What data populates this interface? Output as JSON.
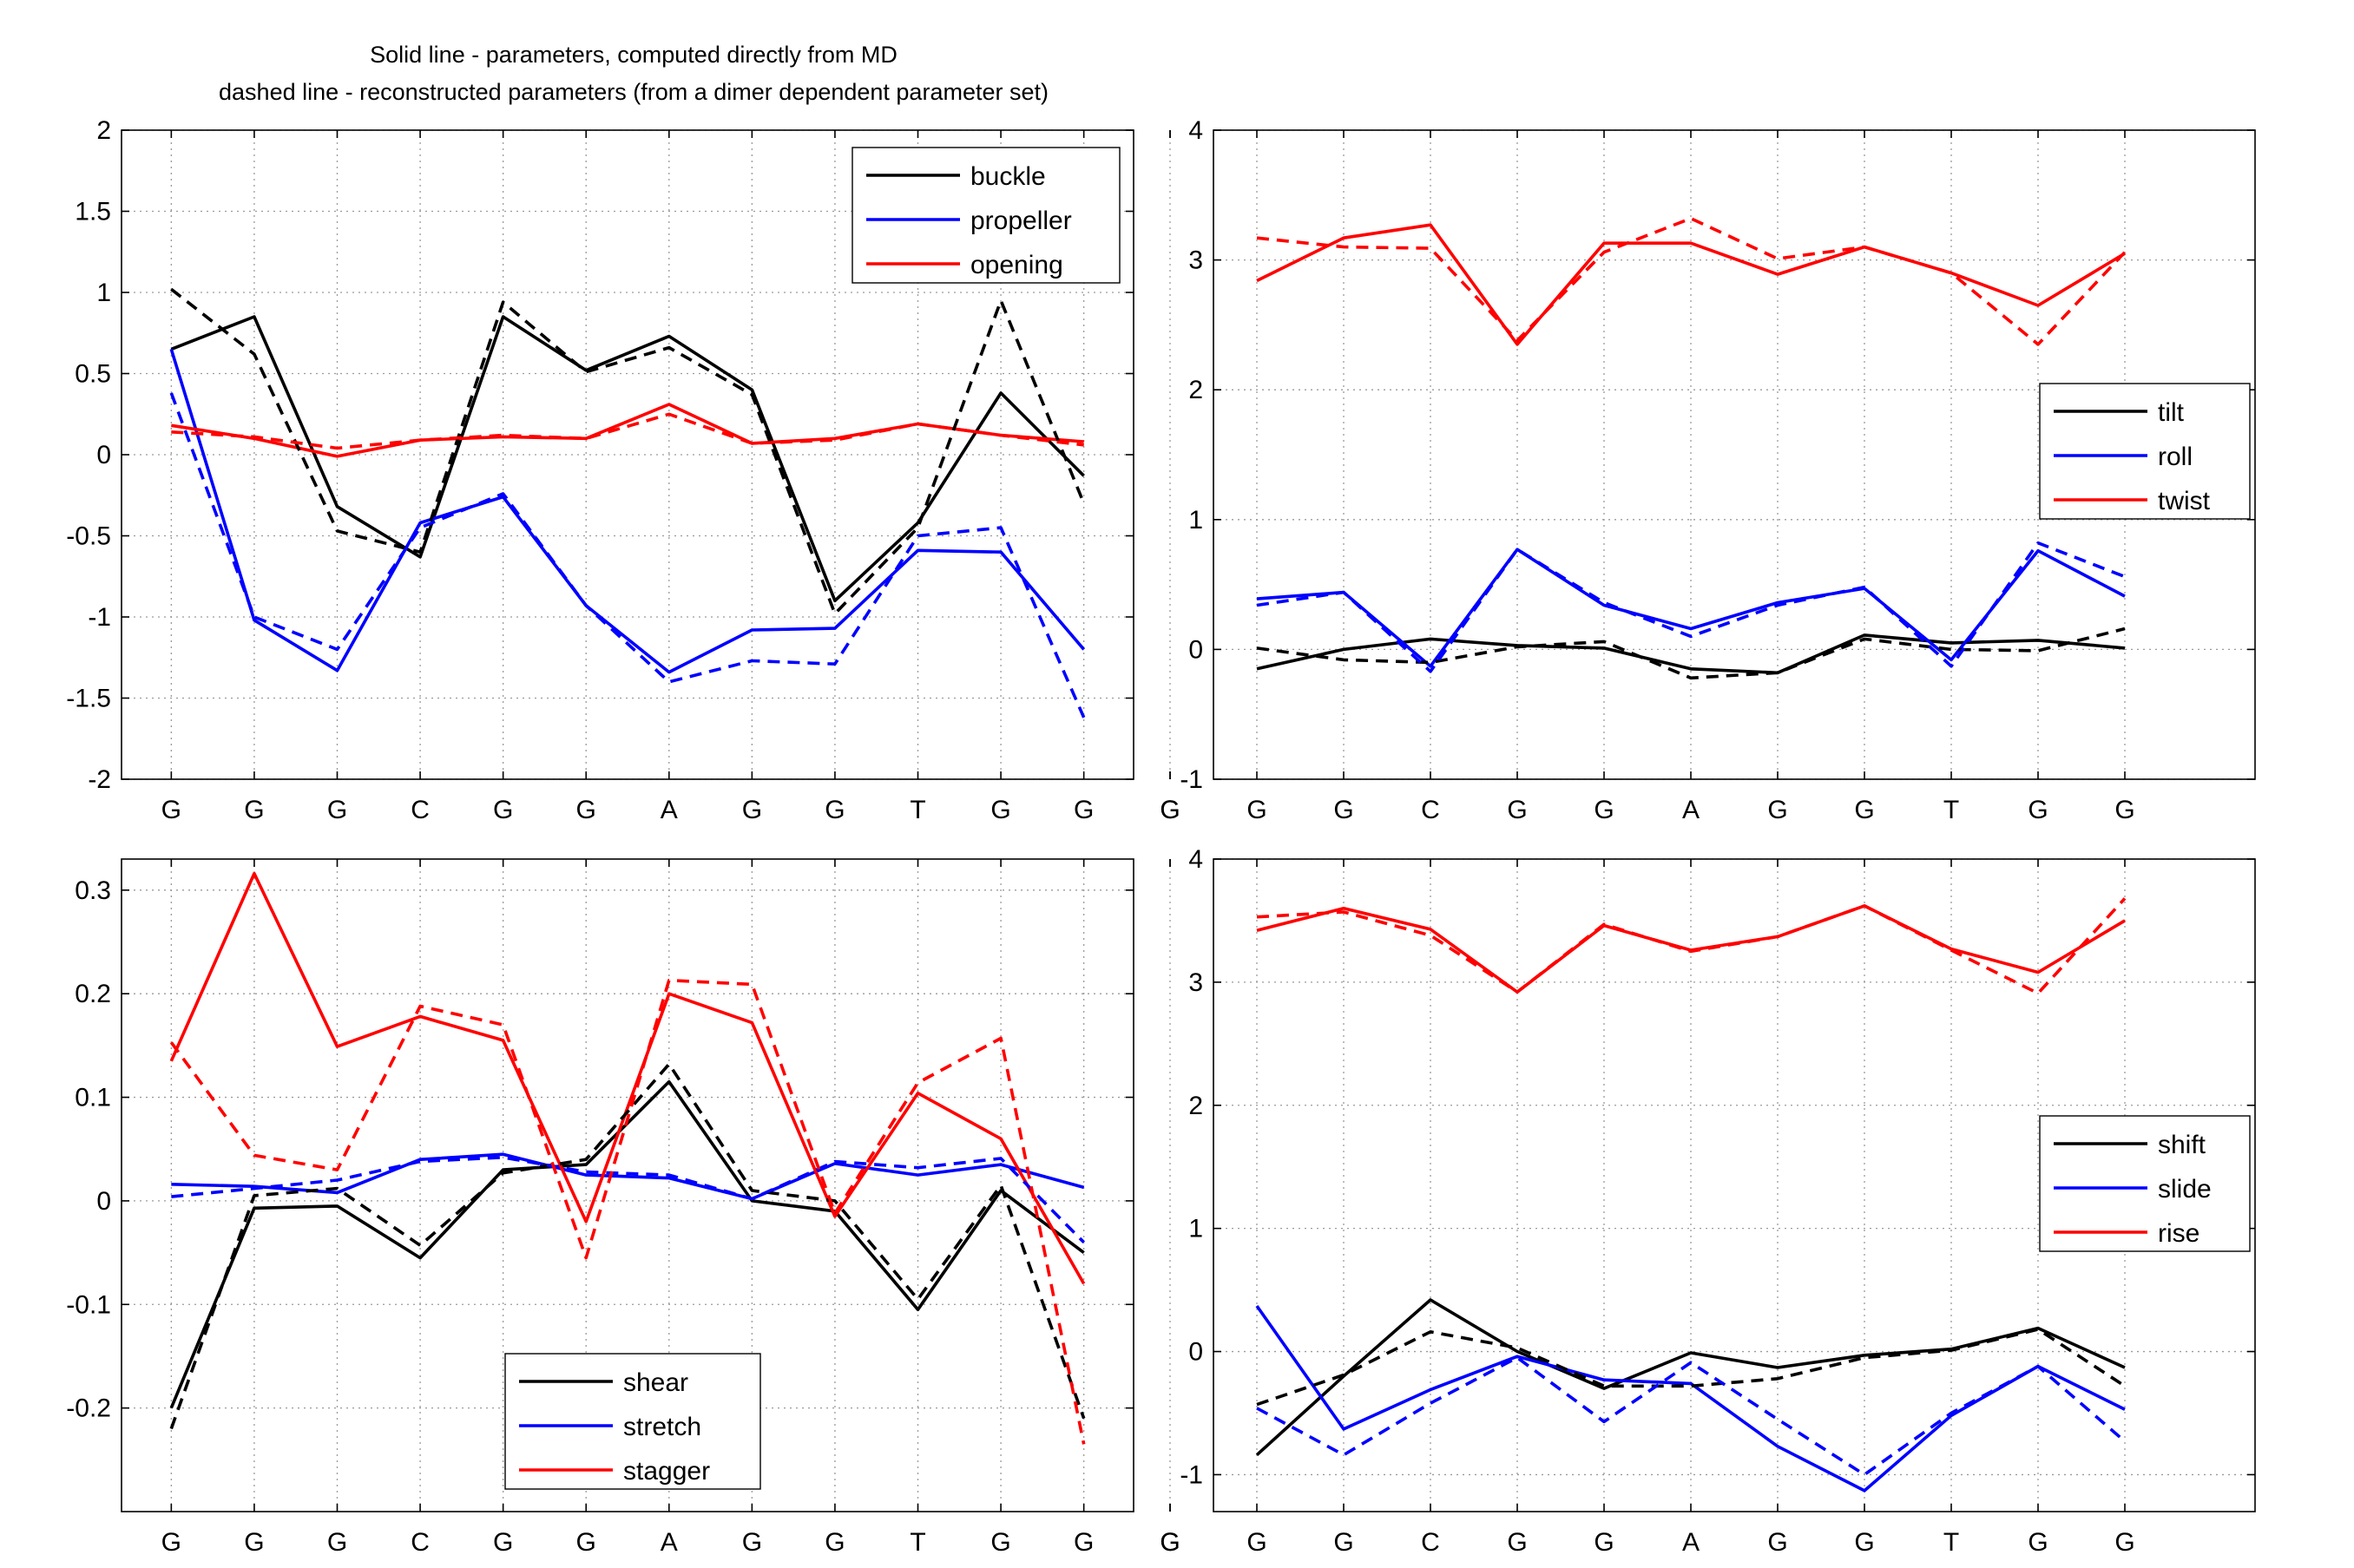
{
  "title_lines": [
    "Solid line - parameters, computed directly from MD",
    "dashed line - reconstructed parameters (from a dimer dependent parameter set)"
  ],
  "chart_data": [
    {
      "type": "line",
      "panel": "top-left",
      "categories": [
        "G",
        "G",
        "G",
        "C",
        "G",
        "G",
        "A",
        "G",
        "G",
        "T",
        "G",
        "G"
      ],
      "ylim": [
        -2,
        2
      ],
      "yticks": [
        -2,
        -1.5,
        -1,
        -0.5,
        0,
        0.5,
        1,
        1.5,
        2
      ],
      "ytick_labels": [
        "-2",
        "-1.5",
        "-1",
        "-0.5",
        "0",
        "0.5",
        "1",
        "1.5",
        "2"
      ],
      "grid": true,
      "legend_position": "top-right",
      "series": [
        {
          "name": "buckle",
          "color": "#000000",
          "style": "solid",
          "values": [
            0.65,
            0.85,
            -0.32,
            -0.63,
            0.85,
            0.52,
            0.73,
            0.4,
            -0.9,
            -0.42,
            0.38,
            -0.13
          ]
        },
        {
          "name": "propeller",
          "color": "#0000ff",
          "style": "solid",
          "values": [
            0.65,
            -1.02,
            -1.33,
            -0.42,
            -0.26,
            -0.93,
            -1.34,
            -1.08,
            -1.07,
            -0.59,
            -0.6,
            -1.2
          ]
        },
        {
          "name": "opening",
          "color": "#ff0000",
          "style": "solid",
          "values": [
            0.18,
            0.1,
            -0.01,
            0.09,
            0.11,
            0.1,
            0.31,
            0.07,
            0.1,
            0.19,
            0.12,
            0.08
          ]
        },
        {
          "color": "#000000",
          "style": "dashed",
          "values": [
            1.02,
            0.62,
            -0.47,
            -0.6,
            0.94,
            0.51,
            0.66,
            0.37,
            -0.98,
            -0.45,
            0.95,
            -0.3
          ]
        },
        {
          "color": "#0000ff",
          "style": "dashed",
          "values": [
            0.38,
            -1.0,
            -1.2,
            -0.45,
            -0.24,
            -0.93,
            -1.4,
            -1.27,
            -1.29,
            -0.5,
            -0.45,
            -1.62
          ]
        },
        {
          "color": "#ff0000",
          "style": "dashed",
          "values": [
            0.14,
            0.11,
            0.04,
            0.09,
            0.12,
            0.1,
            0.25,
            0.07,
            0.09,
            0.19,
            0.12,
            0.06
          ]
        }
      ]
    },
    {
      "type": "line",
      "panel": "top-right",
      "categories": [
        "G",
        "G",
        "G",
        "C",
        "G",
        "G",
        "A",
        "G",
        "G",
        "T",
        "G",
        "G"
      ],
      "ylim": [
        -1,
        4
      ],
      "yticks": [
        -1,
        0,
        1,
        2,
        3,
        4
      ],
      "ytick_labels": [
        "-1",
        "0",
        "1",
        "2",
        "3",
        "4"
      ],
      "grid": true,
      "legend_position": "middle-right",
      "series": [
        {
          "name": "tilt",
          "color": "#000000",
          "style": "solid",
          "values": [
            null,
            -0.15,
            0.0,
            0.08,
            0.03,
            0.01,
            -0.15,
            -0.18,
            0.11,
            0.05,
            0.07,
            0.01
          ]
        },
        {
          "name": "roll",
          "color": "#0000ff",
          "style": "solid",
          "values": [
            null,
            0.39,
            0.44,
            -0.13,
            0.77,
            0.34,
            0.16,
            0.36,
            0.47,
            -0.08,
            0.76,
            0.41
          ]
        },
        {
          "name": "twist",
          "color": "#ff0000",
          "style": "solid",
          "values": [
            null,
            2.84,
            3.17,
            3.27,
            2.35,
            3.13,
            3.13,
            2.89,
            3.1,
            2.9,
            2.65,
            3.05
          ]
        },
        {
          "color": "#000000",
          "style": "dashed",
          "values": [
            null,
            0.01,
            -0.08,
            -0.1,
            0.02,
            0.06,
            -0.22,
            -0.18,
            0.08,
            0.0,
            -0.01,
            0.16
          ]
        },
        {
          "color": "#0000ff",
          "style": "dashed",
          "values": [
            null,
            0.34,
            0.44,
            -0.17,
            0.77,
            0.36,
            0.1,
            0.34,
            0.48,
            -0.13,
            0.82,
            0.56
          ]
        },
        {
          "color": "#ff0000",
          "style": "dashed",
          "values": [
            null,
            3.17,
            3.1,
            3.09,
            2.38,
            3.06,
            3.32,
            3.01,
            3.1,
            2.9,
            2.35,
            3.06
          ]
        }
      ]
    },
    {
      "type": "line",
      "panel": "bottom-left",
      "categories": [
        "G",
        "G",
        "G",
        "C",
        "G",
        "G",
        "A",
        "G",
        "G",
        "T",
        "G",
        "G"
      ],
      "ylim": [
        -0.3,
        0.33
      ],
      "yticks": [
        -0.2,
        -0.1,
        0,
        0.1,
        0.2,
        0.3
      ],
      "ytick_labels": [
        "-0.2",
        "-0.1",
        "0",
        "0.1",
        "0.2",
        "0.3"
      ],
      "grid": true,
      "legend_position": "bottom-center",
      "series": [
        {
          "name": "shear",
          "color": "#000000",
          "style": "solid",
          "values": [
            -0.2,
            -0.007,
            -0.005,
            -0.055,
            0.03,
            0.035,
            0.115,
            0.0,
            -0.01,
            -0.105,
            0.01,
            -0.05
          ]
        },
        {
          "name": "stretch",
          "color": "#0000ff",
          "style": "solid",
          "values": [
            0.016,
            0.014,
            0.008,
            0.04,
            0.045,
            0.025,
            0.022,
            0.002,
            0.036,
            0.025,
            0.035,
            0.013
          ]
        },
        {
          "name": "stagger",
          "color": "#ff0000",
          "style": "solid",
          "values": [
            0.135,
            0.316,
            0.149,
            0.178,
            0.155,
            -0.02,
            0.2,
            0.172,
            -0.015,
            0.104,
            0.06,
            -0.08
          ]
        },
        {
          "color": "#000000",
          "style": "dashed",
          "values": [
            -0.22,
            0.005,
            0.012,
            -0.043,
            0.027,
            0.04,
            0.132,
            0.01,
            0.0,
            -0.095,
            0.015,
            -0.21
          ]
        },
        {
          "color": "#0000ff",
          "style": "dashed",
          "values": [
            0.004,
            0.012,
            0.02,
            0.038,
            0.042,
            0.028,
            0.025,
            0.002,
            0.038,
            0.032,
            0.041,
            -0.04
          ]
        },
        {
          "color": "#ff0000",
          "style": "dashed",
          "values": [
            0.153,
            0.044,
            0.03,
            0.188,
            0.17,
            -0.055,
            0.213,
            0.209,
            -0.012,
            0.114,
            0.157,
            -0.235
          ]
        }
      ]
    },
    {
      "type": "line",
      "panel": "bottom-right",
      "categories": [
        "G",
        "G",
        "G",
        "C",
        "G",
        "G",
        "A",
        "G",
        "G",
        "T",
        "G",
        "G"
      ],
      "ylim": [
        -1.3,
        4
      ],
      "yticks": [
        -1,
        0,
        1,
        2,
        3,
        4
      ],
      "ytick_labels": [
        "-1",
        "0",
        "1",
        "2",
        "3",
        "4"
      ],
      "grid": true,
      "legend_position": "middle-right",
      "series": [
        {
          "name": "shift",
          "color": "#000000",
          "style": "solid",
          "values": [
            null,
            -0.84,
            -0.2,
            0.42,
            0.0,
            -0.3,
            -0.01,
            -0.13,
            -0.03,
            0.02,
            0.19,
            -0.13
          ]
        },
        {
          "name": "slide",
          "color": "#0000ff",
          "style": "solid",
          "values": [
            null,
            0.37,
            -0.63,
            -0.31,
            -0.04,
            -0.23,
            -0.26,
            -0.77,
            -1.13,
            -0.52,
            -0.12,
            -0.47
          ]
        },
        {
          "name": "rise",
          "color": "#ff0000",
          "style": "solid",
          "values": [
            null,
            3.42,
            3.6,
            3.43,
            2.92,
            3.46,
            3.26,
            3.37,
            3.62,
            3.27,
            3.08,
            3.5
          ]
        },
        {
          "color": "#000000",
          "style": "dashed",
          "values": [
            null,
            -0.43,
            -0.19,
            0.16,
            0.03,
            -0.28,
            -0.28,
            -0.22,
            -0.05,
            0.01,
            0.18,
            -0.28
          ]
        },
        {
          "color": "#0000ff",
          "style": "dashed",
          "values": [
            null,
            -0.46,
            -0.84,
            -0.42,
            -0.05,
            -0.57,
            -0.09,
            -0.55,
            -1.0,
            -0.5,
            -0.12,
            -0.73
          ]
        },
        {
          "color": "#ff0000",
          "style": "dashed",
          "values": [
            null,
            3.53,
            3.57,
            3.38,
            2.92,
            3.47,
            3.25,
            3.37,
            3.62,
            3.26,
            2.91,
            3.68
          ]
        }
      ]
    }
  ]
}
